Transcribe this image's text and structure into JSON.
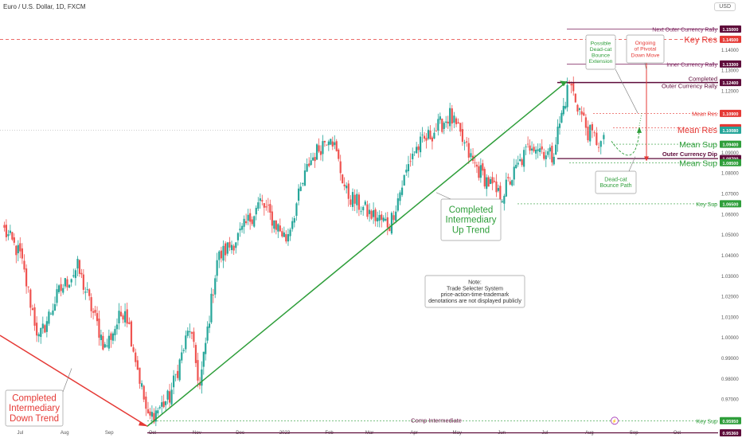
{
  "header": {
    "symbol": "Euro / U.S. Dollar, 1D, FXCM",
    "currency": "USD"
  },
  "colors": {
    "up": "#26a69a",
    "down": "#ef5350",
    "green": "#2e9e3a",
    "red": "#e53935",
    "purple": "#7b1f5b",
    "dark_purple": "#5e0b3a",
    "gray": "#9e9e9e"
  },
  "chart_data": {
    "type": "candlestick",
    "ylim": [
      0.954,
      1.156
    ],
    "y_ticks": [
      "1.15000",
      "1.14000",
      "1.13000",
      "1.12000",
      "1.11000",
      "1.10000",
      "1.09000",
      "1.08000",
      "1.07000",
      "1.06000",
      "1.05000",
      "1.04000",
      "1.03000",
      "1.02000",
      "1.01000",
      "1.00000",
      "0.99000",
      "0.98000",
      "0.97000",
      "0.96000"
    ],
    "x_ticks": [
      "Jul",
      "Aug",
      "Sep",
      "Oct",
      "Nov",
      "Dec",
      "2023",
      "Feb",
      "Mar",
      "Apr",
      "May",
      "Jun",
      "Jul",
      "Aug",
      "Sep",
      "Oct"
    ],
    "price_path": [
      [
        "2022-06-20",
        1.052
      ],
      [
        "2022-07-01",
        1.04
      ],
      [
        "2022-07-14",
        0.999
      ],
      [
        "2022-07-28",
        1.022
      ],
      [
        "2022-08-10",
        1.034
      ],
      [
        "2022-08-29",
        0.995
      ],
      [
        "2022-09-12",
        1.015
      ],
      [
        "2022-09-28",
        0.96
      ],
      [
        "2022-10-13",
        0.971
      ],
      [
        "2022-10-27",
        1.005
      ],
      [
        "2022-11-03",
        0.976
      ],
      [
        "2022-11-15",
        1.038
      ],
      [
        "2022-12-01",
        1.05
      ],
      [
        "2022-12-15",
        1.066
      ],
      [
        "2023-01-02",
        1.048
      ],
      [
        "2023-01-18",
        1.085
      ],
      [
        "2023-02-02",
        1.1
      ],
      [
        "2023-02-13",
        1.07
      ],
      [
        "2023-03-01",
        1.06
      ],
      [
        "2023-03-15",
        1.055
      ],
      [
        "2023-03-31",
        1.09
      ],
      [
        "2023-04-26",
        1.108
      ],
      [
        "2023-05-12",
        1.085
      ],
      [
        "2023-05-31",
        1.068
      ],
      [
        "2023-06-22",
        1.095
      ],
      [
        "2023-07-06",
        1.088
      ],
      [
        "2023-07-18",
        1.124
      ],
      [
        "2023-07-31",
        1.1
      ],
      [
        "2023-08-09",
        1.094
      ],
      [
        "2023-08-11",
        1.0985
      ]
    ],
    "levels": [
      {
        "name": "Next Outer Currency Rally",
        "price": 1.15,
        "label": "1.15000"
      },
      {
        "name": "Key Res",
        "price": 1.145,
        "label": "1.14500"
      },
      {
        "name": "Inner Currency Rally",
        "price": 1.133,
        "label": "1.13300"
      },
      {
        "name": "Completed Outer Currency Rally",
        "price": 1.124,
        "label": "1.12400"
      },
      {
        "name": "Mean Res",
        "price": 1.109,
        "label": "1.10900"
      },
      {
        "name": "Mean Res",
        "price": 1.102,
        "label": "1.10200"
      },
      {
        "name": "Mean Sup",
        "price": 1.094,
        "label": "1.09400"
      },
      {
        "name": "Outer Currency Dip",
        "price": 1.087,
        "label": "1.08700"
      },
      {
        "name": "Mean Sup",
        "price": 1.085,
        "label": "1.08500"
      },
      {
        "name": "Key Sup",
        "price": 1.065,
        "label": "1.06500"
      },
      {
        "name": "Key Sup",
        "price": 0.9595,
        "label": "0.95950"
      },
      {
        "name": "Comp Intermediate",
        "price": 0.9536,
        "label": "0.95360"
      }
    ],
    "current_price": {
      "price": 1.1008,
      "label": "1.10080"
    }
  },
  "annotations": {
    "level_labels": {
      "next_outer_rally": "Next Outer Currency Rally",
      "key_res": "Key Res",
      "inner_rally": "Inner Currency Rally",
      "completed_outer_1": "Completed",
      "completed_outer_2": "Outer Currency Rally",
      "mean_res_small": "Mean Res",
      "mean_res_big": "Mean Res",
      "mean_sup_1": "Mean Sup",
      "outer_dip": "Outer Currency Dip",
      "mean_sup_2": "Mean Sup",
      "key_sup": "Key Sup",
      "key_sup_bottom": "Key Sup",
      "comp_intermediate": "Comp Intermediate"
    },
    "callouts": {
      "dead_cat_ext": [
        "Possible",
        "Dead-cat",
        "Bounce",
        "Extension"
      ],
      "pivotal_down": [
        "Ongoing",
        "of Pivotal",
        "Down Move"
      ],
      "dead_cat_path": [
        "Dead-cat",
        "Bounce Path"
      ],
      "up_trend": [
        "Completed",
        "Intermediary",
        "Up Trend"
      ],
      "down_trend": [
        "Completed",
        "Intermediary",
        "Down Trend"
      ],
      "note": [
        "Note:",
        "Trade Selecter System",
        "price-action-time-trademark",
        "denotations are not displayed publicly"
      ]
    }
  }
}
